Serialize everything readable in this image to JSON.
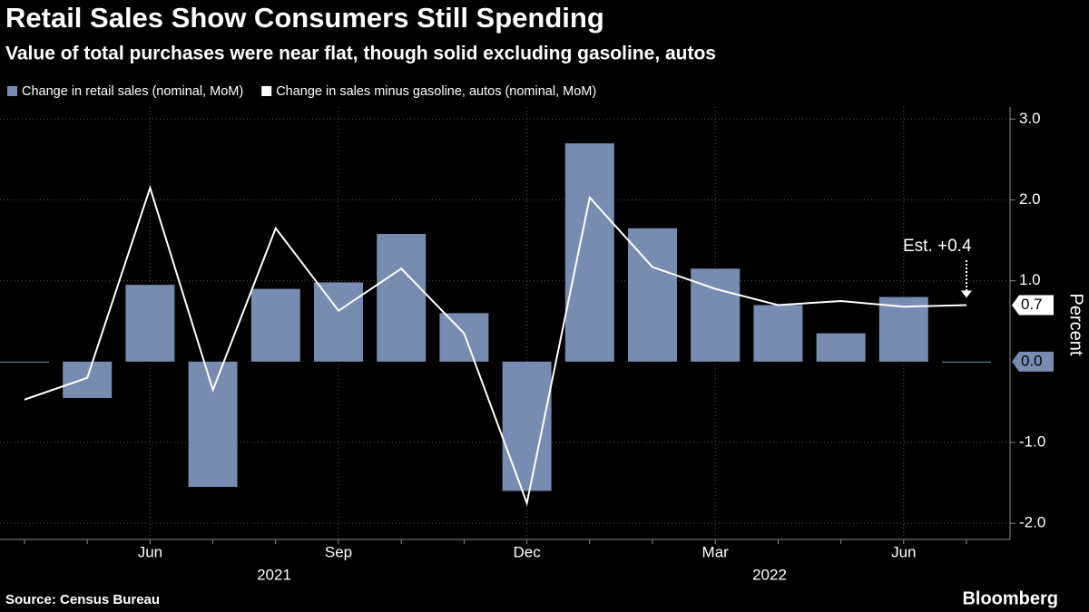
{
  "chart_data": {
    "type": "bar",
    "title": "Retail Sales Show Consumers Still Spending",
    "subtitle": "Value of total purchases were near flat, though solid excluding gasoline, autos",
    "y_label": "Percent",
    "source": "Source: Census Bureau",
    "brand": "Bloomberg",
    "annotation": "Est. +0.4",
    "categories": [
      null,
      null,
      "Jun",
      null,
      null,
      "Sep",
      null,
      null,
      "Dec",
      null,
      null,
      "Mar",
      null,
      null,
      "Jun",
      null
    ],
    "years": [
      "2021",
      "2022"
    ],
    "series": [
      {
        "name": "Change in retail sales (nominal, MoM)",
        "type": "bar",
        "color": "#788cb1",
        "values": [
          0.0,
          -0.45,
          0.95,
          -1.55,
          0.9,
          0.98,
          1.58,
          0.6,
          -1.6,
          2.7,
          1.65,
          1.15,
          0.7,
          0.35,
          0.8,
          0.0
        ],
        "value_labels": [
          null,
          null,
          null,
          null,
          null,
          null,
          null,
          null,
          null,
          null,
          null,
          null,
          null,
          null,
          null,
          "0.0"
        ]
      },
      {
        "name": "Change in sales minus gasoline, autos (nominal, MoM)",
        "type": "line",
        "color": "#ffffff",
        "values": [
          -0.47,
          -0.2,
          2.15,
          -0.35,
          1.65,
          0.63,
          1.15,
          0.35,
          -1.75,
          2.03,
          1.17,
          0.9,
          0.7,
          0.75,
          0.68,
          0.7
        ]
      }
    ],
    "ylim": [
      -2.2,
      3.15
    ],
    "yticks": [
      {
        "value": -2,
        "label": "-2.0"
      },
      {
        "value": -1,
        "label": "-1.0"
      },
      {
        "value": 1,
        "label": "1.0"
      },
      {
        "value": 2,
        "label": "2.0"
      },
      {
        "value": 3,
        "label": "3.0"
      }
    ],
    "grid": true
  }
}
